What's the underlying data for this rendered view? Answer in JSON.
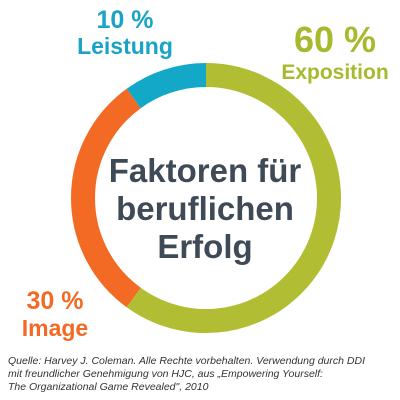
{
  "chart_data": {
    "type": "pie",
    "title_lines": [
      "Faktoren für",
      "beruflichen",
      "Erfolg"
    ],
    "slices": [
      {
        "name": "Exposition",
        "value": 60,
        "label": "60 %",
        "color": "#b1be34"
      },
      {
        "name": "Image",
        "value": 30,
        "label": "30 %",
        "color": "#f26a24"
      },
      {
        "name": "Leistung",
        "value": 10,
        "label": "10 %",
        "color": "#14a8c8"
      }
    ],
    "legend": "none"
  },
  "source": {
    "lines": [
      "Quelle: Harvey J. Coleman. Alle Rechte vorbehalten. Verwendung durch DDI",
      "mit freundlicher Genehmigung von HJC, aus „Empowering Yourself:",
      "The Organizational Game Revealed\", 2010"
    ]
  }
}
